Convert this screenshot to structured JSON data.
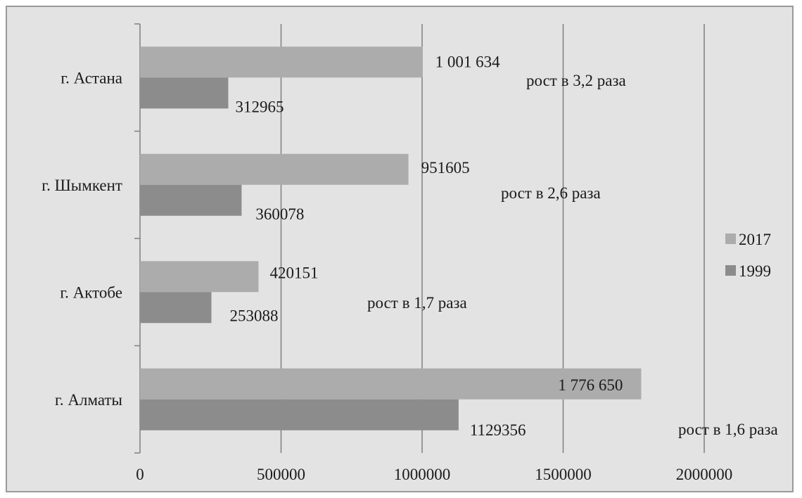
{
  "colors": {
    "frame_background": "#e3e3e3",
    "plot_background": "#e3e3e3",
    "gridline": "#7f7f7f",
    "series_2017": "#acacac",
    "series_1999": "#8c8c8c"
  },
  "chart_data": {
    "type": "bar",
    "orientation": "horizontal",
    "categories": [
      "г. Астана",
      "г. Шымкент",
      "г. Актобе",
      "г. Алматы"
    ],
    "series": [
      {
        "name": "2017",
        "values": [
          1001634,
          951605,
          420151,
          1776650
        ],
        "labels": [
          "1 001 634",
          "951605",
          "420151",
          "1 776 650"
        ]
      },
      {
        "name": "1999",
        "values": [
          312965,
          360078,
          253088,
          1129356
        ],
        "labels": [
          "312965",
          "360078",
          "253088",
          "1129356"
        ]
      }
    ],
    "annotations": [
      "рост в 3,2 раза",
      "рост в 2,6 раза",
      "рост в 1,7 раза",
      "рост в 1,6 раза"
    ],
    "x_ticks": [
      "0",
      "500000",
      "1000000",
      "1500000",
      "2000000"
    ],
    "xlim": [
      0,
      2000000
    ],
    "grid": "vertical major gridlines",
    "legend_position": "right"
  }
}
